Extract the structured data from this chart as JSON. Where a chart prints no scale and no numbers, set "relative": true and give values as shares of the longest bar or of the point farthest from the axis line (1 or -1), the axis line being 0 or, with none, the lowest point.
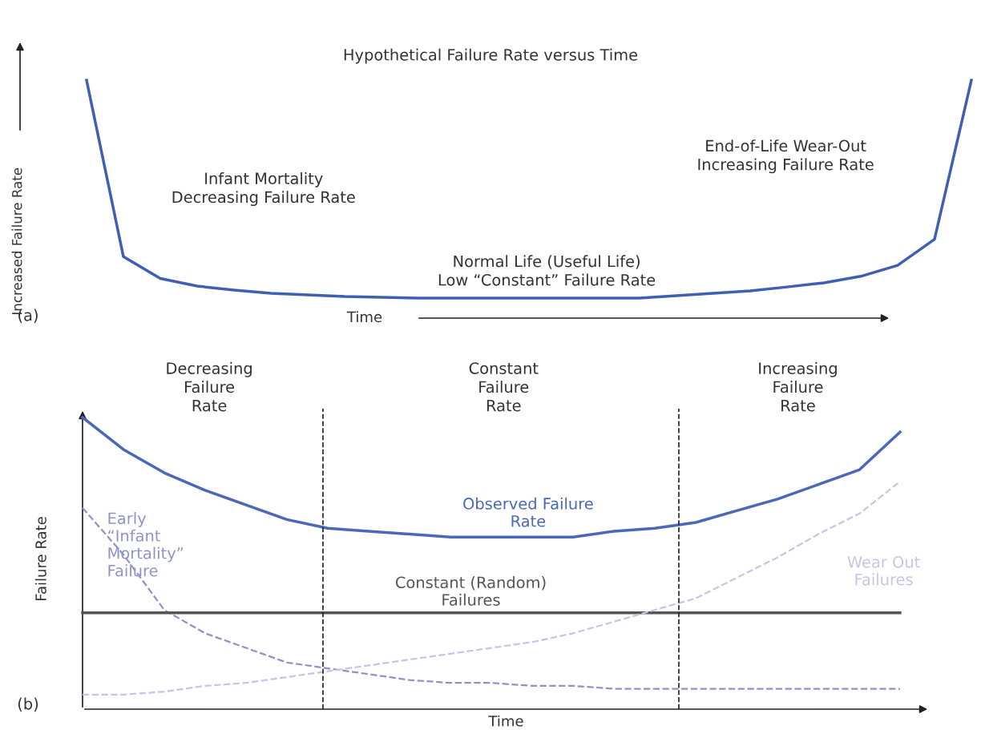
{
  "chart_data": [
    {
      "type": "line",
      "relative": true,
      "title": "Hypothetical Failure Rate versus Time",
      "xlabel": "Time",
      "ylabel": "Increased Failure Rate",
      "categories": [
        null,
        null,
        null,
        null,
        null,
        null,
        null,
        null,
        null,
        null,
        null,
        null,
        null,
        null,
        null,
        null,
        null,
        null,
        null,
        null,
        null,
        null,
        null,
        null,
        null
      ],
      "series": [
        {
          "color": "#3f5fb5",
          "line_style": "solid",
          "values": [
            1.0,
            0.19,
            0.09,
            0.055,
            0.037,
            0.022,
            0.015,
            0.007,
            0.004,
            0,
            0,
            0,
            0,
            0,
            0,
            0,
            0.011,
            0.022,
            0.033,
            0.051,
            0.07,
            0.1,
            0.15,
            0.27,
            1.0
          ]
        }
      ],
      "annotations": [
        "Infant Mortality\nDecreasing Failure Rate",
        "End-of-Life Wear-Out\nIncreasing Failure Rate",
        "Normal Life (Useful Life)\nLow “Constant” Failure Rate",
        "(a)"
      ]
    },
    {
      "type": "line",
      "relative": true,
      "xlabel": "Time",
      "ylabel": "Failure Rate",
      "categories": [
        null,
        null,
        null,
        null,
        null,
        null,
        null,
        null,
        null,
        null,
        null,
        null,
        null,
        null,
        null,
        null,
        null,
        null,
        null,
        null,
        null
      ],
      "series": [
        {
          "name": "Observed Failure\nRate",
          "color": "#4a68b8",
          "line_style": "solid",
          "values": [
            1.0,
            0.89,
            0.81,
            0.75,
            0.7,
            0.65,
            0.62,
            0.61,
            0.6,
            0.59,
            0.59,
            0.59,
            0.59,
            0.61,
            0.62,
            0.64,
            0.68,
            0.72,
            0.77,
            0.82,
            0.95
          ]
        },
        {
          "name": "Early\n“Infant\nMortality”\nFailure",
          "color": "#8d93c9",
          "line_style": "dashed",
          "values": [
            0.69,
            0.53,
            0.34,
            0.26,
            0.21,
            0.16,
            0.14,
            0.12,
            0.1,
            0.09,
            0.09,
            0.08,
            0.08,
            0.07,
            0.07,
            0.07,
            0.07,
            0.07,
            0.07,
            0.07,
            0.07
          ]
        },
        {
          "name": "Constant (Random)\nFailures",
          "color": "#555555",
          "line_style": "solid",
          "values": [
            0.33,
            0.33,
            0.33,
            0.33,
            0.33,
            0.33,
            0.33,
            0.33,
            0.33,
            0.33,
            0.33,
            0.33,
            0.33,
            0.33,
            0.33,
            0.33,
            0.33,
            0.33,
            0.33,
            0.33,
            0.33
          ]
        },
        {
          "name": "Wear Out\nFailures",
          "color": "#c3c6e6",
          "line_style": "dashed",
          "values": [
            0.05,
            0.05,
            0.06,
            0.08,
            0.09,
            0.11,
            0.13,
            0.15,
            0.17,
            0.19,
            0.21,
            0.23,
            0.26,
            0.3,
            0.34,
            0.38,
            0.45,
            0.52,
            0.6,
            0.67,
            0.78
          ]
        }
      ],
      "annotations": [
        "Decreasing\nFailure\nRate",
        "Constant\nFailure\nRate",
        "Increasing\nFailure\nRate",
        "(b)"
      ]
    }
  ]
}
